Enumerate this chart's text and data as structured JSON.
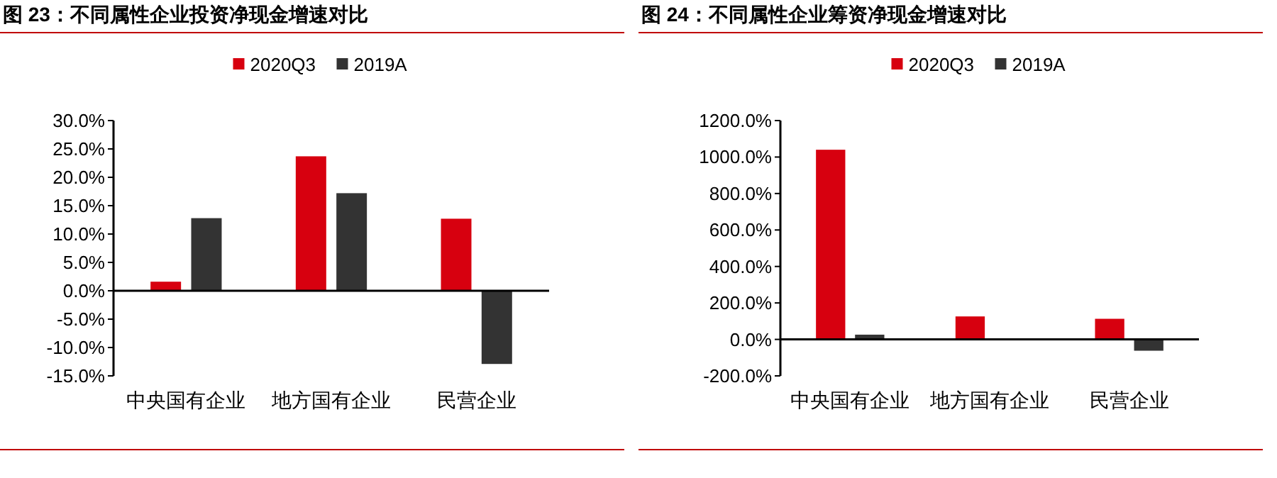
{
  "chart_data": [
    {
      "type": "bar",
      "title": "图 23：不同属性企业投资净现金增速对比",
      "categories": [
        "中央国有企业",
        "地方国有企业",
        "民营企业"
      ],
      "series": [
        {
          "name": "2020Q3",
          "color": "#d7000f",
          "values": [
            1.6,
            23.7,
            12.7
          ]
        },
        {
          "name": "2019A",
          "color": "#333333",
          "values": [
            12.8,
            17.2,
            -12.9
          ]
        }
      ],
      "ylim": [
        -15,
        30
      ],
      "yticks": [
        {
          "value": -15,
          "label": "-15.0%"
        },
        {
          "value": -10,
          "label": "-10.0%"
        },
        {
          "value": -5,
          "label": "-5.0%"
        },
        {
          "value": 0,
          "label": "0.0%"
        },
        {
          "value": 5,
          "label": "5.0%"
        },
        {
          "value": 10,
          "label": "10.0%"
        },
        {
          "value": 15,
          "label": "15.0%"
        },
        {
          "value": 20,
          "label": "20.0%"
        },
        {
          "value": 25,
          "label": "25.0%"
        },
        {
          "value": 30,
          "label": "30.0%"
        }
      ],
      "legend": "top"
    },
    {
      "type": "bar",
      "title": "图 24：不同属性企业筹资净现金增速对比",
      "categories": [
        "中央国有企业",
        "地方国有企业",
        "民营企业"
      ],
      "series": [
        {
          "name": "2020Q3",
          "color": "#d7000f",
          "values": [
            1040,
            126,
            113
          ]
        },
        {
          "name": "2019A",
          "color": "#333333",
          "values": [
            26,
            2,
            -62
          ]
        }
      ],
      "ylim": [
        -200,
        1200
      ],
      "yticks": [
        {
          "value": -200,
          "label": "-200.0%"
        },
        {
          "value": 0,
          "label": "0.0%"
        },
        {
          "value": 200,
          "label": "200.0%"
        },
        {
          "value": 400,
          "label": "400.0%"
        },
        {
          "value": 600,
          "label": "600.0%"
        },
        {
          "value": 800,
          "label": "800.0%"
        },
        {
          "value": 1000,
          "label": "1000.0%"
        },
        {
          "value": 1200,
          "label": "1200.0%"
        }
      ],
      "legend": "top"
    }
  ]
}
